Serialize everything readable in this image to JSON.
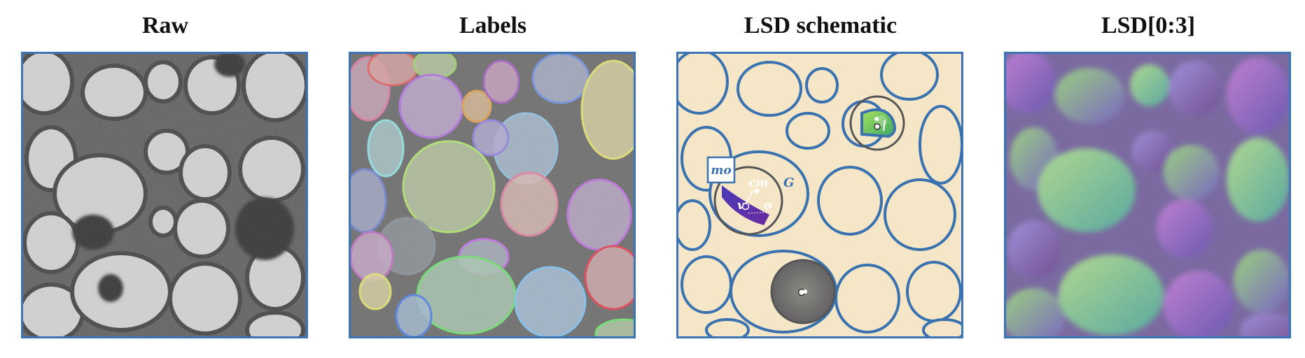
{
  "panels": [
    {
      "title": "Raw"
    },
    {
      "title": "Labels"
    },
    {
      "title": "LSD schematic"
    },
    {
      "title": "LSD[0:3]"
    }
  ],
  "schematic": {
    "labels": {
      "mo": "mo",
      "cm": "cm",
      "G": "G",
      "v": "v",
      "sigma": "σ"
    }
  },
  "colors": {
    "frame": "#3c74b4",
    "membrane": "#3a72b0",
    "cell_fill": "#f5e6c8",
    "lsd_purple": "#5b2fa8",
    "lsd_green": "#7ccf3a"
  }
}
